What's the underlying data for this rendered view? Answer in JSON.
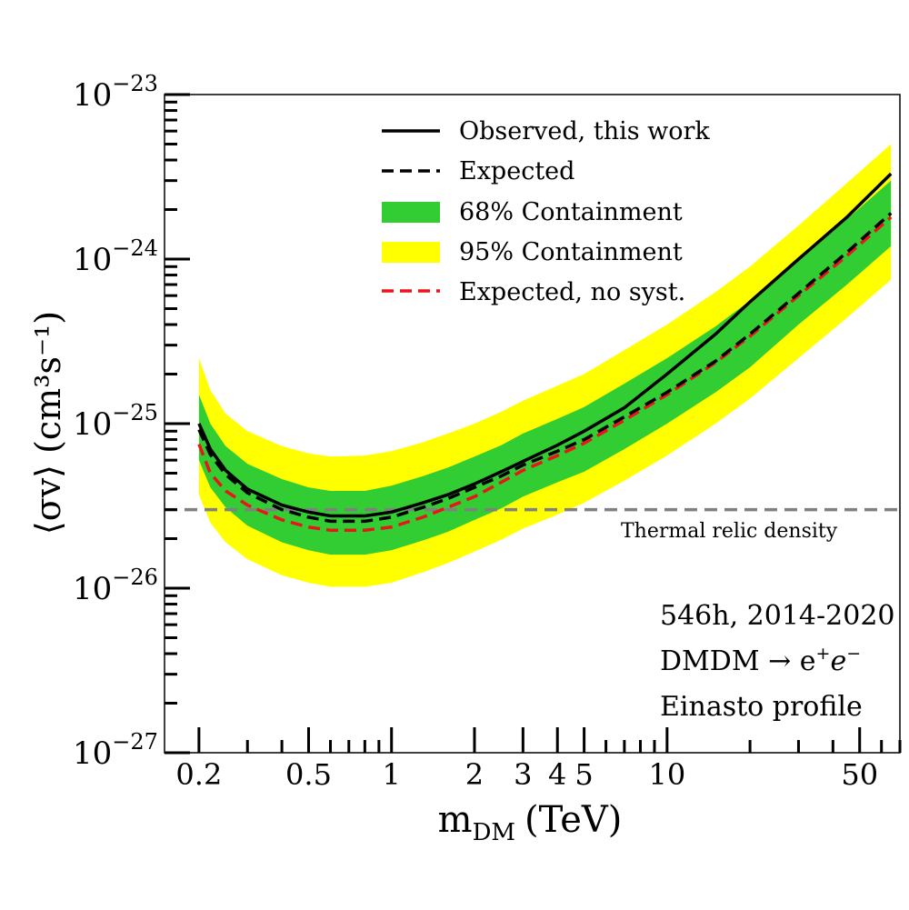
{
  "chart_data": {
    "type": "line",
    "title": "",
    "xlabel_main": "m",
    "xlabel_sub": "DM",
    "xlabel_unit": "(TeV)",
    "ylabel": "⟨σv⟩ (cm³s⁻¹)",
    "xscale": "log",
    "yscale": "log",
    "xlim": [
      0.15,
      70
    ],
    "ylim": [
      1e-27,
      1e-23
    ],
    "x_tick_labels": [
      {
        "value": 0.2,
        "label": "0.2"
      },
      {
        "value": 0.5,
        "label": "0.5"
      },
      {
        "value": 1,
        "label": "1"
      },
      {
        "value": 2,
        "label": "2"
      },
      {
        "value": 3,
        "label": "3"
      },
      {
        "value": 4,
        "label": "4"
      },
      {
        "value": 5,
        "label": "5"
      },
      {
        "value": 10,
        "label": "10"
      },
      {
        "value": 50,
        "label": "50"
      }
    ],
    "y_tick_labels": [
      {
        "value": 1e-23,
        "base": "10",
        "exp": "−23"
      },
      {
        "value": 1e-24,
        "base": "10",
        "exp": "−24"
      },
      {
        "value": 1e-25,
        "base": "10",
        "exp": "−25"
      },
      {
        "value": 1e-26,
        "base": "10",
        "exp": "−26"
      },
      {
        "value": 1e-27,
        "base": "10",
        "exp": "−27"
      }
    ],
    "x": [
      0.2,
      0.22,
      0.25,
      0.3,
      0.4,
      0.5,
      0.6,
      0.8,
      1.0,
      1.3,
      1.6,
      2.0,
      2.5,
      3.0,
      4.0,
      5.0,
      7.0,
      10,
      15,
      20,
      30,
      45,
      65
    ],
    "observed": [
      1e-25,
      7e-26,
      5.2e-26,
      4e-26,
      3.2e-26,
      2.9e-26,
      2.75e-26,
      2.75e-26,
      2.9e-26,
      3.3e-26,
      3.7e-26,
      4.3e-26,
      5.1e-26,
      5.9e-26,
      7.4e-26,
      9e-26,
      1.25e-25,
      2e-25,
      3.5e-25,
      5.5e-25,
      1e-24,
      1.8e-24,
      3.3e-24
    ],
    "expected": [
      9.2e-26,
      6.5e-26,
      4.9e-26,
      3.8e-26,
      3e-26,
      2.7e-26,
      2.55e-26,
      2.55e-26,
      2.7e-26,
      3.1e-26,
      3.5e-26,
      4.1e-26,
      4.8e-26,
      5.6e-26,
      6.8e-26,
      8e-26,
      1.1e-25,
      1.55e-25,
      2.4e-25,
      3.5e-25,
      6.2e-25,
      1.1e-24,
      1.9e-24
    ],
    "expected_no_syst": [
      7.5e-26,
      5e-26,
      3.9e-26,
      3.2e-26,
      2.6e-26,
      2.35e-26,
      2.25e-26,
      2.25e-26,
      2.35e-26,
      2.7e-26,
      3.1e-26,
      3.6e-26,
      4.4e-26,
      5.2e-26,
      6.4e-26,
      7.6e-26,
      1.05e-25,
      1.5e-25,
      2.35e-25,
      3.4e-25,
      6e-25,
      1.05e-24,
      1.8e-24
    ],
    "band68_lower": [
      6e-26,
      4.1e-26,
      3.1e-26,
      2.4e-26,
      1.9e-26,
      1.7e-26,
      1.6e-26,
      1.6e-26,
      1.7e-26,
      1.95e-26,
      2.2e-26,
      2.6e-26,
      3.05e-26,
      3.6e-26,
      4.4e-26,
      5.1e-26,
      7e-26,
      1e-25,
      1.55e-25,
      2.2e-25,
      4e-25,
      7e-25,
      1.2e-24
    ],
    "band68_upper": [
      1.5e-25,
      1e-25,
      7.3e-26,
      5.7e-26,
      4.6e-26,
      4.1e-26,
      3.9e-26,
      3.9e-26,
      4.2e-26,
      4.8e-26,
      5.4e-26,
      6.3e-26,
      7.4e-26,
      8.7e-26,
      1.07e-25,
      1.26e-25,
      1.75e-25,
      2.5e-25,
      3.9e-25,
      5.6e-25,
      1e-24,
      1.75e-24,
      3e-24
    ],
    "band95_lower": [
      3.7e-26,
      2.5e-26,
      1.9e-26,
      1.5e-26,
      1.2e-26,
      1.08e-26,
      1.02e-26,
      1.02e-26,
      1.08e-26,
      1.25e-26,
      1.42e-26,
      1.67e-26,
      1.97e-26,
      2.3e-26,
      2.8e-26,
      3.3e-26,
      4.5e-26,
      6.4e-26,
      1e-25,
      1.42e-25,
      2.5e-25,
      4.4e-25,
      7.5e-25
    ],
    "band95_upper": [
      2.5e-25,
      1.6e-25,
      1.15e-25,
      9e-26,
      7.3e-26,
      6.6e-26,
      6.3e-26,
      6.4e-26,
      6.8e-26,
      7.7e-26,
      8.7e-26,
      1e-25,
      1.18e-25,
      1.38e-25,
      1.7e-25,
      2e-25,
      2.8e-25,
      4e-25,
      6.3e-25,
      9e-25,
      1.6e-24,
      2.9e-24,
      5e-24
    ],
    "thermal_relic": 3e-26,
    "thermal_relic_label": "Thermal relic density",
    "legend": [
      {
        "key": "observed",
        "label": "Observed, this work",
        "style": "solid-black"
      },
      {
        "key": "expected",
        "label": "Expected",
        "style": "dashed-black"
      },
      {
        "key": "band68",
        "label": "68% Containment",
        "style": "fill-green"
      },
      {
        "key": "band95",
        "label": "95% Containment",
        "style": "fill-yellow"
      },
      {
        "key": "expected_no_syst",
        "label": "Expected, no syst.",
        "style": "dashed-red"
      }
    ],
    "legend_position": "top-center",
    "annotations": {
      "line1": "546h, 2014-2020",
      "line2_main": "DMDM → e",
      "line2_sup1": "+",
      "line2_mid": "e",
      "line2_sup2": "−",
      "line3": "Einasto profile"
    },
    "colors": {
      "observed": "#000000",
      "expected": "#000000",
      "expected_no_syst": "#e8161b",
      "band68": "#32cd32",
      "band95": "#ffff00",
      "thermal": "#808080"
    }
  }
}
